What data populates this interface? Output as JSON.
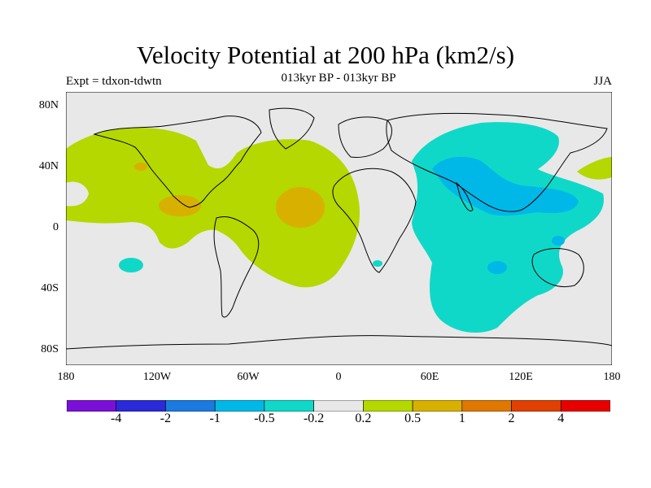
{
  "header": {
    "title": "Velocity Potential at 200 hPa (km2/s)",
    "subtitle": "013kyr BP - 013kyr BP",
    "left_label": "Expt = tdxon-tdwtn",
    "right_label": "JJA"
  },
  "chart_data": {
    "type": "heatmap",
    "projection": "cylindrical-equidistant",
    "lon_range": [
      -180,
      180
    ],
    "lat_range": [
      -90,
      90
    ],
    "lat_ticks": [
      "80N",
      "40N",
      "0",
      "40S",
      "80S"
    ],
    "lon_ticks": [
      "180",
      "120W",
      "60W",
      "0",
      "60E",
      "120E",
      "180"
    ],
    "colorbar": {
      "colors": [
        "#7a10d8",
        "#2a2ad8",
        "#1a7ae0",
        "#00b8e8",
        "#10d8c8",
        "#e8e8e8",
        "#b4d800",
        "#d8b000",
        "#e07800",
        "#e04000",
        "#e80000"
      ],
      "labels": [
        "-4",
        "-2",
        "-1",
        "-0.5",
        "-0.2",
        "0.2",
        "0.5",
        "1",
        "2",
        "4"
      ]
    },
    "background_color": "#e8e8e8"
  }
}
